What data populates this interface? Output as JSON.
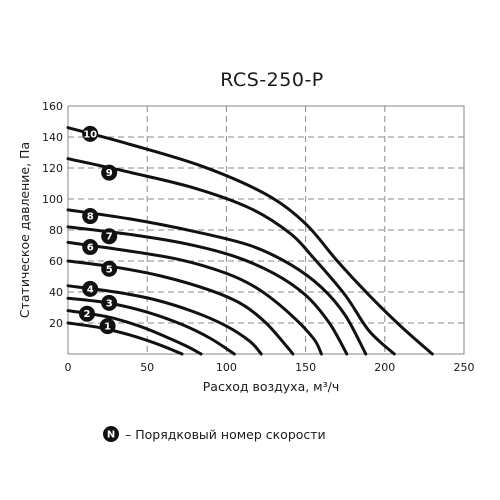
{
  "chart_data": {
    "type": "line",
    "title": "RCS-250-P",
    "xlabel": "Расход воздуха, м³/ч",
    "ylabel": "Статическое давление, Па",
    "xlim": [
      0,
      250
    ],
    "ylim": [
      0,
      160
    ],
    "xticks": [
      0,
      50,
      100,
      150,
      200,
      250
    ],
    "yticks": [
      20,
      40,
      60,
      80,
      100,
      120,
      140,
      160
    ],
    "grid": true,
    "series": [
      {
        "name": "1",
        "points": [
          [
            0,
            20
          ],
          [
            20,
            17
          ],
          [
            40,
            12
          ],
          [
            55,
            7
          ],
          [
            65,
            3
          ],
          [
            72,
            0
          ]
        ]
      },
      {
        "name": "2",
        "points": [
          [
            0,
            28
          ],
          [
            25,
            24
          ],
          [
            45,
            18
          ],
          [
            62,
            11
          ],
          [
            75,
            5
          ],
          [
            84,
            0
          ]
        ]
      },
      {
        "name": "3",
        "points": [
          [
            0,
            36
          ],
          [
            25,
            33
          ],
          [
            50,
            27
          ],
          [
            72,
            19
          ],
          [
            90,
            10
          ],
          [
            105,
            0
          ]
        ]
      },
      {
        "name": "4",
        "points": [
          [
            0,
            44
          ],
          [
            30,
            40
          ],
          [
            55,
            35
          ],
          [
            80,
            27
          ],
          [
            100,
            18
          ],
          [
            115,
            8
          ],
          [
            122,
            0
          ]
        ]
      },
      {
        "name": "5",
        "points": [
          [
            0,
            60
          ],
          [
            30,
            56
          ],
          [
            60,
            50
          ],
          [
            90,
            41
          ],
          [
            110,
            32
          ],
          [
            125,
            20
          ],
          [
            138,
            5
          ],
          [
            142,
            0
          ]
        ]
      },
      {
        "name": "6",
        "points": [
          [
            0,
            72
          ],
          [
            35,
            67
          ],
          [
            70,
            61
          ],
          [
            100,
            52
          ],
          [
            120,
            42
          ],
          [
            140,
            26
          ],
          [
            155,
            10
          ],
          [
            160,
            0
          ]
        ]
      },
      {
        "name": "7",
        "points": [
          [
            0,
            82
          ],
          [
            40,
            77
          ],
          [
            75,
            71
          ],
          [
            105,
            63
          ],
          [
            130,
            52
          ],
          [
            150,
            38
          ],
          [
            165,
            20
          ],
          [
            176,
            0
          ]
        ]
      },
      {
        "name": "8",
        "points": [
          [
            0,
            93
          ],
          [
            40,
            87
          ],
          [
            80,
            79
          ],
          [
            115,
            70
          ],
          [
            140,
            58
          ],
          [
            160,
            43
          ],
          [
            175,
            25
          ],
          [
            188,
            0
          ]
        ]
      },
      {
        "name": "9",
        "points": [
          [
            0,
            126
          ],
          [
            40,
            117
          ],
          [
            80,
            107
          ],
          [
            115,
            94
          ],
          [
            140,
            78
          ],
          [
            155,
            62
          ],
          [
            175,
            38
          ],
          [
            190,
            15
          ],
          [
            206,
            0
          ]
        ]
      },
      {
        "name": "10",
        "points": [
          [
            0,
            146
          ],
          [
            40,
            135
          ],
          [
            85,
            121
          ],
          [
            125,
            103
          ],
          [
            150,
            84
          ],
          [
            170,
            60
          ],
          [
            190,
            38
          ],
          [
            210,
            18
          ],
          [
            230,
            0
          ]
        ]
      }
    ],
    "badges": [
      {
        "label": "1",
        "x": 25,
        "y": 18
      },
      {
        "label": "2",
        "x": 12,
        "y": 26
      },
      {
        "label": "3",
        "x": 26,
        "y": 33
      },
      {
        "label": "4",
        "x": 14,
        "y": 42
      },
      {
        "label": "5",
        "x": 26,
        "y": 55
      },
      {
        "label": "6",
        "x": 14,
        "y": 69
      },
      {
        "label": "7",
        "x": 26,
        "y": 76
      },
      {
        "label": "8",
        "x": 14,
        "y": 89
      },
      {
        "label": "9",
        "x": 26,
        "y": 117
      },
      {
        "label": "10",
        "x": 14,
        "y": 142
      }
    ],
    "legend": {
      "symbol": "N",
      "text": "–  Порядковый номер скорости"
    }
  }
}
